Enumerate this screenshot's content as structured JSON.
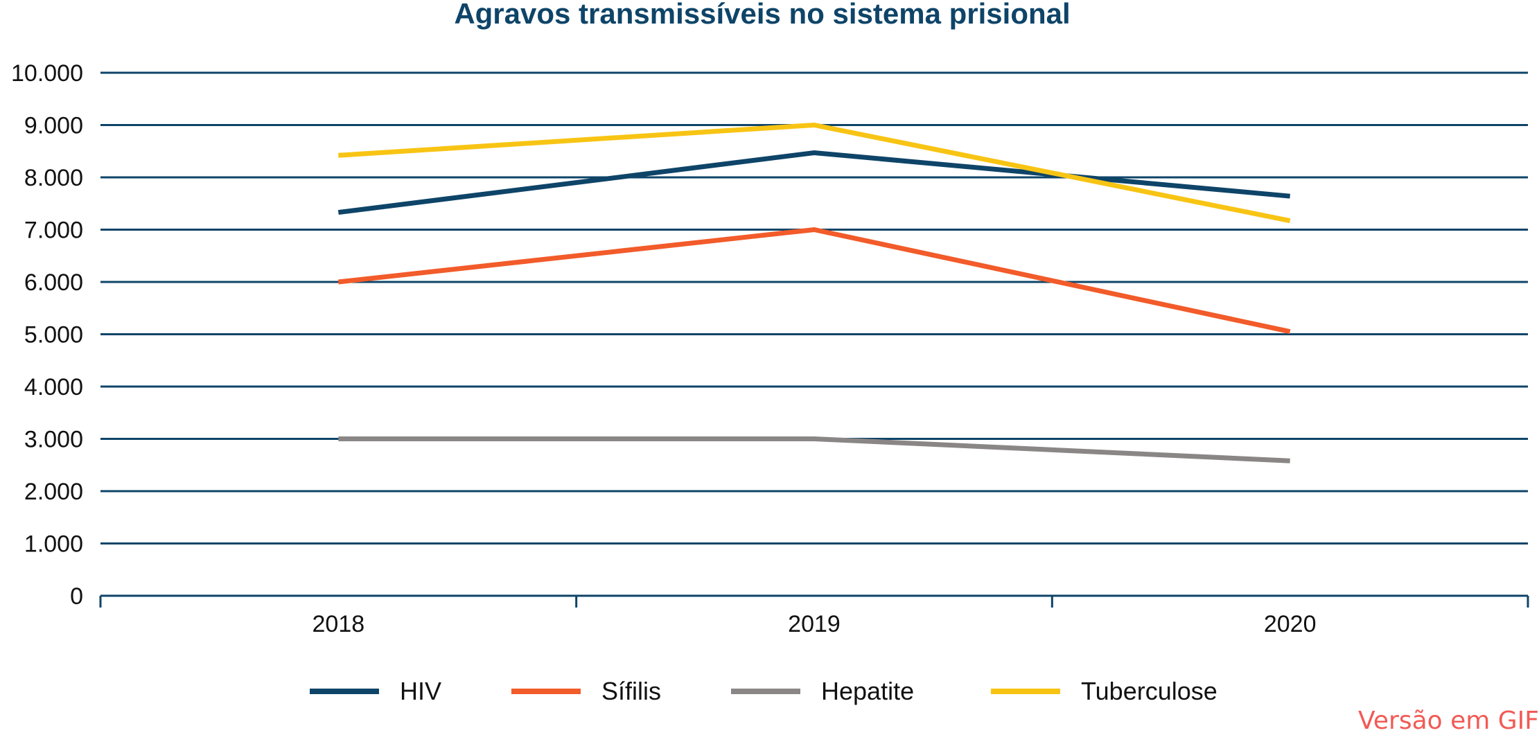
{
  "chart_data": {
    "type": "line",
    "title": "Agravos transmissíveis no sistema prisional",
    "xlabel": "",
    "ylabel": "",
    "categories": [
      "2018",
      "2019",
      "2020"
    ],
    "ylim": [
      0,
      10000
    ],
    "yticks": [
      0,
      1000,
      2000,
      3000,
      4000,
      5000,
      6000,
      7000,
      8000,
      9000,
      10000
    ],
    "ytick_labels": [
      "0",
      "1.000",
      "2.000",
      "3.000",
      "4.000",
      "5.000",
      "6.000",
      "7.000",
      "8.000",
      "9.000",
      "10.000"
    ],
    "grid": true,
    "legend_position": "bottom",
    "series": [
      {
        "name": "HIV",
        "color": "#0e4468",
        "values": [
          7330,
          8470,
          7640
        ]
      },
      {
        "name": "Sífilis",
        "color": "#f25b2a",
        "values": [
          6000,
          7000,
          5050
        ]
      },
      {
        "name": "Hepatite",
        "color": "#8a8686",
        "values": [
          3000,
          3000,
          2580
        ]
      },
      {
        "name": "Tuberculose",
        "color": "#f8c414",
        "values": [
          8420,
          9000,
          7170
        ]
      }
    ]
  },
  "link": {
    "label": "Versão em GIF"
  }
}
